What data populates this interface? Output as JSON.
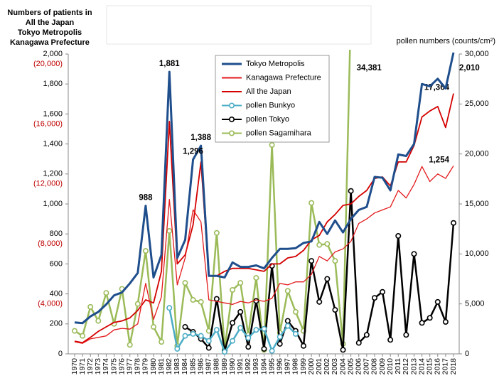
{
  "chart_data": {
    "type": "line",
    "ylabel": [
      "Numbers of patients in",
      "All the Japan",
      "Tokyo Metropolis",
      "Kanagawa Prefecture"
    ],
    "y2label": "pollen numbers (counts/cm²)",
    "categories": [
      "1970",
      "1971",
      "1972",
      "1973",
      "1974",
      "1975",
      "1976",
      "1977",
      "1978",
      "1979",
      "1980",
      "1981",
      "1982",
      "1983",
      "1984",
      "1985",
      "1986",
      "1987",
      "1988",
      "1989",
      "1990",
      "1991",
      "1992",
      "1993",
      "1994",
      "1995",
      "1996",
      "1997",
      "1998",
      "1999",
      "2000",
      "2001",
      "2002",
      "2003",
      "2004",
      "2005",
      "2006",
      "2007",
      "2008",
      "2009",
      "2010",
      "2011",
      "2012",
      "2013",
      "2014",
      "2015",
      "2016",
      "2017",
      "2018"
    ],
    "ylim": [
      0,
      2000
    ],
    "yticks": [
      0,
      200,
      400,
      600,
      800,
      {
        "value": 1000,
        "label": "1,000"
      },
      {
        "value": 1200,
        "label": "1,200"
      },
      {
        "value": 1400,
        "label": "1,400"
      },
      {
        "value": 1600,
        "label": "1,600"
      },
      {
        "value": 1800,
        "label": "1,800"
      },
      {
        "value": 2000,
        "label": "2,000"
      }
    ],
    "y3lim": [
      0,
      20000
    ],
    "y3ticks": [
      {
        "value": 4000,
        "label": "(4,000)"
      },
      {
        "value": 8000,
        "label": "(8,000)"
      },
      {
        "value": 12000,
        "label": "(12,000)"
      },
      {
        "value": 16000,
        "label": "(16,000)"
      },
      {
        "value": 20000,
        "label": "(20,000)"
      }
    ],
    "y2lim": [
      0,
      30000
    ],
    "y2ticks": [
      0,
      {
        "value": 5000,
        "label": "5,000"
      },
      {
        "value": 10000,
        "label": "10,000"
      },
      {
        "value": 15000,
        "label": "15,000"
      },
      {
        "value": 20000,
        "label": "20,000"
      },
      {
        "value": 25000,
        "label": "25,000"
      },
      {
        "value": 30000,
        "label": "30,000"
      }
    ],
    "series": [
      {
        "name": "Tokyo Metropolis",
        "color": "#1f4e8c",
        "values": [
          210,
          205,
          250,
          280,
          330,
          390,
          410,
          470,
          540,
          988,
          510,
          660,
          1881,
          640,
          760,
          1296,
          1388,
          520,
          520,
          510,
          610,
          580,
          580,
          590,
          570,
          640,
          700,
          700,
          705,
          740,
          750,
          880,
          800,
          890,
          810,
          900,
          960,
          980,
          1180,
          1175,
          1090,
          1330,
          1320,
          1400,
          1800,
          1785,
          1835,
          1770,
          2010
        ],
        "value_labels": [
          null,
          null,
          null,
          null,
          null,
          null,
          null,
          null,
          null,
          "988",
          null,
          null,
          "1,881",
          null,
          null,
          "1,296",
          "1,388",
          null,
          null,
          null,
          null,
          null,
          null,
          null,
          null,
          null,
          null,
          null,
          null,
          null,
          null,
          null,
          null,
          null,
          null,
          null,
          null,
          null,
          null,
          null,
          null,
          null,
          null,
          null,
          null,
          null,
          null,
          null,
          "2,010"
        ]
      },
      {
        "name": "Kanagawa Prefecture",
        "color": "#e31a1c",
        "values": [
          80,
          70,
          100,
          110,
          120,
          160,
          170,
          165,
          200,
          470,
          230,
          380,
          1030,
          460,
          640,
          960,
          880,
          360,
          350,
          340,
          330,
          350,
          340,
          360,
          350,
          370,
          470,
          460,
          480,
          480,
          530,
          650,
          620,
          680,
          700,
          750,
          870,
          900,
          940,
          960,
          980,
          1090,
          1040,
          1130,
          1250,
          1150,
          1200,
          1170,
          1254
        ],
        "value_labels": [
          null,
          null,
          null,
          null,
          null,
          null,
          null,
          null,
          null,
          null,
          null,
          null,
          null,
          null,
          null,
          null,
          null,
          null,
          null,
          null,
          null,
          null,
          null,
          null,
          null,
          null,
          null,
          null,
          null,
          null,
          null,
          null,
          null,
          null,
          null,
          null,
          null,
          null,
          null,
          null,
          null,
          null,
          null,
          null,
          null,
          null,
          null,
          null,
          "1,254"
        ]
      },
      {
        "name": "All the Japan",
        "color": "#d40000",
        "axis": "y3",
        "values": [
          850,
          750,
          1100,
          1500,
          1800,
          2100,
          2200,
          2400,
          2900,
          3600,
          3400,
          5500,
          15500,
          6000,
          6600,
          8600,
          12800,
          5200,
          5200,
          5500,
          5700,
          5700,
          5700,
          5600,
          5500,
          6000,
          6000,
          6400,
          6500,
          6900,
          7600,
          7900,
          8800,
          9300,
          9900,
          10000,
          10500,
          10900,
          11700,
          11800,
          11200,
          12800,
          12800,
          13900,
          15800,
          16200,
          16500,
          15100,
          17364
        ],
        "value_labels": [
          null,
          null,
          null,
          null,
          null,
          null,
          null,
          null,
          null,
          null,
          null,
          null,
          null,
          null,
          null,
          null,
          null,
          null,
          null,
          null,
          null,
          null,
          null,
          null,
          null,
          null,
          null,
          null,
          null,
          null,
          null,
          null,
          null,
          null,
          null,
          null,
          null,
          null,
          null,
          null,
          null,
          null,
          null,
          null,
          null,
          null,
          null,
          null,
          "17,364"
        ]
      },
      {
        "name": "pollen Bunkyo",
        "color": "#4bacc6",
        "axis": "y2",
        "values": [
          null,
          null,
          null,
          null,
          null,
          null,
          null,
          null,
          null,
          null,
          null,
          null,
          4600,
          500,
          1800,
          2000,
          1800,
          1300,
          2400,
          200,
          1300,
          2600,
          1600,
          2400,
          2500,
          300,
          1700,
          2800,
          2000,
          null,
          null,
          null,
          null,
          null,
          null,
          null,
          null,
          null,
          null,
          null,
          null,
          null,
          null,
          null,
          null,
          null,
          null,
          null,
          null
        ]
      },
      {
        "name": "pollen Tokyo",
        "color": "#000000",
        "axis": "y2",
        "values": [
          null,
          null,
          null,
          null,
          null,
          null,
          null,
          null,
          null,
          null,
          null,
          null,
          null,
          null,
          2700,
          2200,
          1500,
          600,
          5500,
          300,
          3100,
          4200,
          700,
          5300,
          500,
          8800,
          1000,
          3300,
          2300,
          800,
          9300,
          5200,
          7500,
          4400,
          400,
          16300,
          1100,
          1900,
          5600,
          6200,
          1400,
          11800,
          1900,
          10000,
          3100,
          3600,
          5200,
          3200,
          13100
        ]
      },
      {
        "name": "pollen Sagamihara",
        "color": "#9bbb59",
        "axis": "y2",
        "values": [
          2300,
          1800,
          4700,
          3300,
          6100,
          3000,
          6500,
          900,
          5000,
          10300,
          2700,
          1200,
          12300,
          800,
          7100,
          5400,
          5200,
          2300,
          12100,
          500,
          6400,
          7100,
          1900,
          7600,
          400,
          20900,
          2100,
          6300,
          4200,
          2300,
          15100,
          10900,
          11000,
          9300,
          1000,
          34381,
          null,
          null,
          null,
          null,
          null,
          null,
          null,
          null,
          null,
          null,
          null,
          null,
          null
        ],
        "value_labels": [
          null,
          null,
          null,
          null,
          null,
          null,
          null,
          null,
          null,
          null,
          null,
          null,
          null,
          null,
          null,
          null,
          null,
          null,
          null,
          null,
          null,
          null,
          null,
          null,
          null,
          null,
          null,
          null,
          null,
          null,
          null,
          null,
          null,
          null,
          null,
          "34,381",
          null,
          null,
          null,
          null,
          null,
          null,
          null,
          null,
          null,
          null,
          null,
          null,
          null
        ]
      }
    ]
  }
}
